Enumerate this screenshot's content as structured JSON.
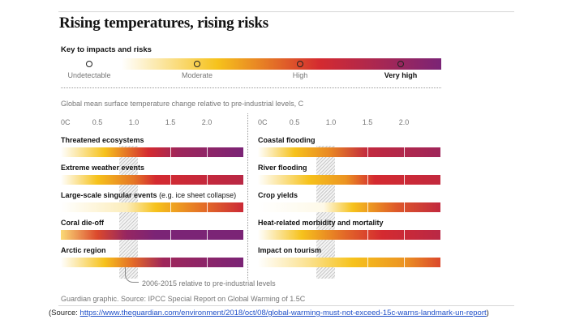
{
  "title": "Rising temperatures, rising risks",
  "key": {
    "heading": "Key to impacts and risks",
    "levels": [
      {
        "label": "Undetectable",
        "strong": false
      },
      {
        "label": "Moderate",
        "strong": false
      },
      {
        "label": "High",
        "strong": false
      },
      {
        "label": "Very high",
        "strong": true
      }
    ],
    "colors": {
      "undetectable": "#ffffff",
      "moderate": "#f6c21c",
      "high": "#d42a30",
      "very_high": "#7b2476"
    }
  },
  "subtitle": "Global mean surface temperature change relative to pre-industrial levels, C",
  "annotation": "2006-2015 relative to pre-industrial levels",
  "credit": "Guardian graphic. Source: IPCC Special Report on Global Warming of 1.5C",
  "source": {
    "prefix": "(Source: ",
    "url": "https://www.theguardian.com/environment/2018/oct/08/global-warming-must-not-exceed-15c-warns-landmark-un-report",
    "suffix": ")"
  },
  "chart_data": {
    "type": "heatmap",
    "title": "Rising temperatures, rising risks",
    "xlabel": "Global mean surface temperature change relative to pre-industrial levels, C",
    "x_ticks": [
      "0C",
      "0.5",
      "1.0",
      "1.5",
      "2.0"
    ],
    "xlim": [
      0,
      2.5
    ],
    "risk_scale": {
      "undetectable": 0,
      "moderate": 1,
      "high": 2,
      "very_high": 3
    },
    "reference_band": {
      "label": "2006-2015 relative to pre-industrial levels",
      "range": [
        0.8,
        1.05
      ]
    },
    "panels": [
      {
        "position": "left",
        "systems": [
          {
            "name": "Threatened ecosystems",
            "note": "",
            "stops": [
              [
                0.0,
                0
              ],
              [
                0.6,
                1
              ],
              [
                1.2,
                2
              ],
              [
                1.6,
                2.6
              ],
              [
                2.5,
                3
              ]
            ],
            "dividers": [
              1.5,
              2.0
            ]
          },
          {
            "name": "Extreme weather events",
            "note": "",
            "stops": [
              [
                0.0,
                0
              ],
              [
                0.5,
                1
              ],
              [
                1.0,
                1.5
              ],
              [
                1.3,
                2
              ],
              [
                2.5,
                2.3
              ]
            ],
            "dividers": [
              1.5,
              2.0
            ]
          },
          {
            "name": "Large-scale singular events",
            "note": "(e.g. ice sheet collapse)",
            "stops": [
              [
                0.0,
                0
              ],
              [
                0.9,
                0.3
              ],
              [
                1.3,
                1
              ],
              [
                2.0,
                1.6
              ],
              [
                2.5,
                2.1
              ]
            ],
            "dividers": [
              1.5,
              2.0
            ]
          },
          {
            "name": "Coral die-off",
            "note": "",
            "stops": [
              [
                0.0,
                0.6
              ],
              [
                0.5,
                1.8
              ],
              [
                0.9,
                2.7
              ],
              [
                1.3,
                3
              ],
              [
                2.5,
                3
              ]
            ],
            "dividers": [
              1.5,
              2.0
            ]
          },
          {
            "name": "Arctic region",
            "note": "",
            "stops": [
              [
                0.0,
                0
              ],
              [
                0.6,
                1
              ],
              [
                1.0,
                1.6
              ],
              [
                1.4,
                2.6
              ],
              [
                2.5,
                3
              ]
            ],
            "dividers": [
              1.5,
              2.0
            ]
          }
        ]
      },
      {
        "position": "right",
        "systems": [
          {
            "name": "Coastal flooding",
            "note": "",
            "stops": [
              [
                0.0,
                0
              ],
              [
                0.5,
                1
              ],
              [
                1.0,
                1.4
              ],
              [
                1.5,
                2.2
              ],
              [
                2.5,
                2.6
              ]
            ],
            "dividers": [
              1.5,
              2.0
            ]
          },
          {
            "name": "River flooding",
            "note": "",
            "stops": [
              [
                0.0,
                0
              ],
              [
                0.7,
                1
              ],
              [
                1.2,
                1.3
              ],
              [
                1.6,
                2
              ],
              [
                2.5,
                2.2
              ]
            ],
            "dividers": [
              1.5,
              2.0
            ]
          },
          {
            "name": "Crop yields",
            "note": "",
            "stops": [
              [
                0.0,
                0
              ],
              [
                0.9,
                0.1
              ],
              [
                1.3,
                1
              ],
              [
                1.9,
                1.7
              ],
              [
                2.5,
                2.2
              ]
            ],
            "dividers": [
              1.5,
              2.0
            ]
          },
          {
            "name": "Heat-related morbidity and mortality",
            "note": "",
            "stops": [
              [
                0.0,
                0
              ],
              [
                0.6,
                1
              ],
              [
                1.2,
                1.6
              ],
              [
                1.7,
                2
              ],
              [
                2.5,
                2.3
              ]
            ],
            "dividers": [
              1.5,
              2.0
            ]
          },
          {
            "name": "Impact on tourism",
            "note": "",
            "stops": [
              [
                0.0,
                0
              ],
              [
                0.7,
                0.5
              ],
              [
                1.3,
                1
              ],
              [
                2.0,
                1.3
              ],
              [
                2.5,
                1.8
              ]
            ],
            "dividers": [
              1.5,
              2.0
            ]
          }
        ]
      }
    ]
  }
}
